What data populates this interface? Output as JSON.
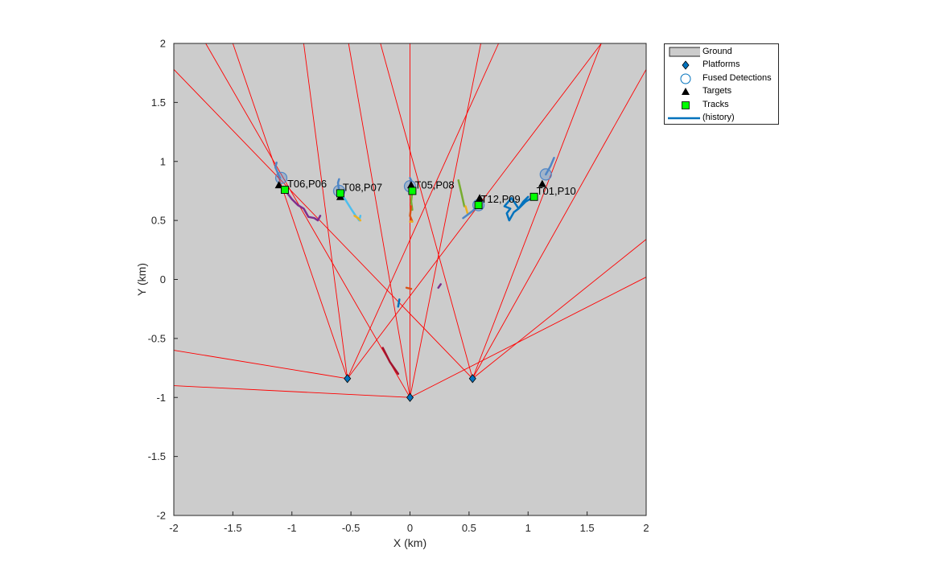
{
  "chart_data": {
    "type": "scatter",
    "title": "",
    "xlabel": "X (km)",
    "ylabel": "Y (km)",
    "xlim": [
      -2,
      2
    ],
    "ylim": [
      -2,
      2
    ],
    "xticks": [
      "-2",
      "-1.5",
      "-1",
      "-0.5",
      "0",
      "0.5",
      "1",
      "1.5",
      "2"
    ],
    "yticks": [
      "2",
      "1.5",
      "1",
      "0.5",
      "0",
      "-0.5",
      "-1",
      "-1.5",
      "-2"
    ],
    "grid": false,
    "legend_position": "outside-top-right",
    "legend": [
      "Ground",
      "Platforms",
      "Fused Detections",
      "Targets",
      "Tracks",
      "(history)"
    ],
    "colors": {
      "ground": "#cccccc",
      "platform": "#0072bd",
      "fused": "#4f86c6",
      "target": "#000000",
      "track": "#00ff00",
      "beam": "#ff0000",
      "history": "#0072bd"
    },
    "platforms": [
      {
        "x": -0.53,
        "y": -0.84
      },
      {
        "x": 0.0,
        "y": -1.0
      },
      {
        "x": 0.53,
        "y": -0.84
      }
    ],
    "beams": [
      {
        "from": 0,
        "to": [
          -2.0,
          -0.6
        ]
      },
      {
        "from": 0,
        "to": [
          -1.5,
          2.0
        ]
      },
      {
        "from": 0,
        "to": [
          -0.9,
          2.0
        ]
      },
      {
        "from": 0,
        "to": [
          0.75,
          2.0
        ]
      },
      {
        "from": 0,
        "to": [
          1.62,
          2.0
        ]
      },
      {
        "from": 1,
        "to": [
          -2.0,
          -0.9
        ]
      },
      {
        "from": 1,
        "to": [
          -1.73,
          2.0
        ]
      },
      {
        "from": 1,
        "to": [
          -0.52,
          2.0
        ]
      },
      {
        "from": 1,
        "to": [
          0.0,
          2.0
        ]
      },
      {
        "from": 1,
        "to": [
          0.6,
          2.0
        ]
      },
      {
        "from": 1,
        "to": [
          2.0,
          0.02
        ]
      },
      {
        "from": 2,
        "to": [
          -2.0,
          1.78
        ]
      },
      {
        "from": 2,
        "to": [
          -0.25,
          2.0
        ]
      },
      {
        "from": 2,
        "to": [
          1.62,
          2.0
        ]
      },
      {
        "from": 2,
        "to": [
          2.0,
          1.78
        ]
      },
      {
        "from": 2,
        "to": [
          2.0,
          0.34
        ]
      }
    ],
    "fused_detections": [
      {
        "x": -1.09,
        "y": 0.86
      },
      {
        "x": -0.6,
        "y": 0.75
      },
      {
        "x": 0.0,
        "y": 0.79
      },
      {
        "x": 0.58,
        "y": 0.63
      },
      {
        "x": 1.15,
        "y": 0.89
      }
    ],
    "targets": [
      {
        "x": -1.11,
        "y": 0.8
      },
      {
        "x": -0.59,
        "y": 0.7
      },
      {
        "x": 0.01,
        "y": 0.8
      },
      {
        "x": 0.59,
        "y": 0.69
      },
      {
        "x": 1.12,
        "y": 0.81
      }
    ],
    "tracks": [
      {
        "x": -1.06,
        "y": 0.76,
        "label": "T06,P06"
      },
      {
        "x": -0.59,
        "y": 0.73,
        "label": "T08,P07"
      },
      {
        "x": 0.02,
        "y": 0.75,
        "label": "T05,P08"
      },
      {
        "x": 0.58,
        "y": 0.63,
        "label": "T12,P09"
      },
      {
        "x": 1.05,
        "y": 0.7,
        "label": "T01,P10"
      }
    ],
    "history": [
      {
        "color": "#7e2f8e",
        "points": [
          [
            -1.06,
            0.76
          ],
          [
            -1.0,
            0.68
          ],
          [
            -0.95,
            0.63
          ],
          [
            -0.9,
            0.6
          ],
          [
            -0.86,
            0.53
          ],
          [
            -0.81,
            0.52
          ],
          [
            -0.78,
            0.5
          ],
          [
            -0.76,
            0.54
          ]
        ]
      },
      {
        "color": "#4dbeee",
        "points": [
          [
            -0.6,
            0.75
          ],
          [
            -0.55,
            0.68
          ],
          [
            -0.5,
            0.6
          ],
          [
            -0.46,
            0.54
          ],
          [
            -0.43,
            0.5
          ],
          [
            -0.42,
            0.54
          ]
        ]
      },
      {
        "color": "#edb120",
        "points": [
          [
            -0.47,
            0.54
          ],
          [
            -0.44,
            0.52
          ],
          [
            -0.42,
            0.5
          ]
        ]
      },
      {
        "color": "#4f86c6",
        "points": [
          [
            -1.1,
            0.86
          ],
          [
            -1.14,
            0.95
          ],
          [
            -1.13,
            0.99
          ]
        ]
      },
      {
        "color": "#4f86c6",
        "points": [
          [
            -0.6,
            0.75
          ],
          [
            -0.61,
            0.82
          ],
          [
            -0.6,
            0.85
          ]
        ]
      },
      {
        "color": "#4f86c6",
        "points": [
          [
            0.0,
            0.79
          ],
          [
            0.01,
            0.84
          ],
          [
            0.0,
            0.86
          ]
        ]
      },
      {
        "color": "#4f86c6",
        "points": [
          [
            1.15,
            0.89
          ],
          [
            1.19,
            0.96
          ],
          [
            1.22,
            1.03
          ]
        ]
      },
      {
        "color": "#77ac30",
        "points": [
          [
            0.41,
            0.84
          ],
          [
            0.44,
            0.71
          ],
          [
            0.46,
            0.62
          ]
        ]
      },
      {
        "color": "#edb120",
        "points": [
          [
            0.47,
            0.62
          ],
          [
            0.49,
            0.55
          ],
          [
            0.53,
            0.58
          ]
        ]
      },
      {
        "color": "#4f86c6",
        "points": [
          [
            0.45,
            0.52
          ],
          [
            0.53,
            0.58
          ],
          [
            0.58,
            0.63
          ]
        ]
      },
      {
        "color": "#77ac30",
        "points": [
          [
            0.02,
            0.75
          ],
          [
            0.01,
            0.66
          ],
          [
            0.02,
            0.59
          ]
        ]
      },
      {
        "color": "#d95319",
        "points": [
          [
            0.01,
            0.62
          ],
          [
            0.0,
            0.54
          ],
          [
            0.02,
            0.49
          ]
        ]
      },
      {
        "color": "#edb120",
        "points": [
          [
            0.0,
            0.49
          ],
          [
            0.02,
            0.49
          ]
        ]
      },
      {
        "color": "#0072bd",
        "points": [
          [
            1.05,
            0.7
          ],
          [
            0.98,
            0.66
          ],
          [
            0.92,
            0.6
          ],
          [
            0.88,
            0.57
          ],
          [
            0.84,
            0.5
          ],
          [
            0.82,
            0.56
          ],
          [
            0.85,
            0.6
          ],
          [
            0.8,
            0.62
          ],
          [
            0.86,
            0.69
          ],
          [
            0.92,
            0.6
          ],
          [
            0.96,
            0.66
          ],
          [
            1.0,
            0.7
          ]
        ]
      },
      {
        "color": "#a2142f",
        "points": [
          [
            -0.23,
            -0.58
          ],
          [
            -0.17,
            -0.7
          ],
          [
            -0.1,
            -0.8
          ]
        ]
      },
      {
        "color": "#0072bd",
        "points": [
          [
            -0.1,
            -0.23
          ],
          [
            -0.09,
            -0.17
          ]
        ]
      },
      {
        "color": "#7e2f8e",
        "points": [
          [
            0.24,
            -0.07
          ],
          [
            0.26,
            -0.04
          ]
        ]
      },
      {
        "color": "#d95319",
        "points": [
          [
            -0.03,
            -0.07
          ],
          [
            0.01,
            -0.08
          ]
        ]
      }
    ]
  }
}
